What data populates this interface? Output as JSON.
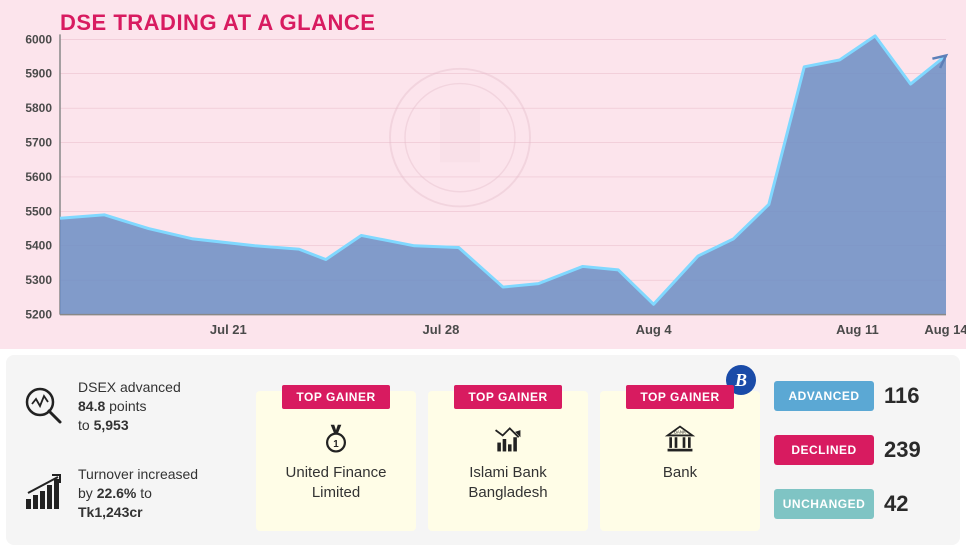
{
  "chart": {
    "title": "DSE TRADING AT A GLANCE",
    "type": "area",
    "title_color": "#d81b60",
    "title_fontsize": 22,
    "background_color": "#fce4ec",
    "area_fill": "#6b8ec4",
    "area_opacity": 0.85,
    "line_color": "#80d8ff",
    "line_width": 3,
    "grid_color": "#e8b9c8",
    "axis_color": "#888888",
    "tick_font_color": "#4a4a4a",
    "tick_fontsize": 12,
    "ylim": [
      5200,
      6000
    ],
    "ytick_step": 100,
    "yticks": [
      5200,
      5300,
      5400,
      5500,
      5600,
      5700,
      5800,
      5900,
      6000
    ],
    "xticks": [
      {
        "pos": 0.19,
        "label": "Jul 21"
      },
      {
        "pos": 0.43,
        "label": "Jul 28"
      },
      {
        "pos": 0.67,
        "label": "Aug 4"
      },
      {
        "pos": 0.9,
        "label": "Aug 11"
      },
      {
        "pos": 1.0,
        "label": "Aug 14"
      }
    ],
    "series": [
      {
        "x": 0.0,
        "y": 5480
      },
      {
        "x": 0.05,
        "y": 5490
      },
      {
        "x": 0.1,
        "y": 5450
      },
      {
        "x": 0.15,
        "y": 5420
      },
      {
        "x": 0.22,
        "y": 5400
      },
      {
        "x": 0.27,
        "y": 5390
      },
      {
        "x": 0.3,
        "y": 5360
      },
      {
        "x": 0.34,
        "y": 5430
      },
      {
        "x": 0.4,
        "y": 5400
      },
      {
        "x": 0.45,
        "y": 5395
      },
      {
        "x": 0.5,
        "y": 5280
      },
      {
        "x": 0.54,
        "y": 5290
      },
      {
        "x": 0.59,
        "y": 5340
      },
      {
        "x": 0.63,
        "y": 5330
      },
      {
        "x": 0.67,
        "y": 5230
      },
      {
        "x": 0.72,
        "y": 5370
      },
      {
        "x": 0.76,
        "y": 5420
      },
      {
        "x": 0.8,
        "y": 5520
      },
      {
        "x": 0.84,
        "y": 5920
      },
      {
        "x": 0.88,
        "y": 5940
      },
      {
        "x": 0.92,
        "y": 6010
      },
      {
        "x": 0.96,
        "y": 5870
      },
      {
        "x": 1.0,
        "y": 5953
      }
    ],
    "arrow_end": true
  },
  "stats": {
    "dsex": {
      "line1": "DSEX advanced",
      "points": "84.8",
      "line2_prefix": "points",
      "target_prefix": "to",
      "target": "5,953"
    },
    "turnover": {
      "line1": "Turnover increased",
      "pct": "22.6%",
      "line2_prefix": "by",
      "line2_suffix": "to",
      "value": "Tk1,243cr"
    }
  },
  "gainers": [
    {
      "badge": "TOP GAINER",
      "name_l1": "United Finance",
      "name_l2": "Limited",
      "icon": "medal"
    },
    {
      "badge": "TOP GAINER",
      "name_l1": "Islami Bank",
      "name_l2": "Bangladesh",
      "icon": "chart-down"
    },
    {
      "badge": "TOP GAINER",
      "name_l1": "Bank",
      "name_l2": "",
      "icon": "bank"
    }
  ],
  "counters": {
    "advanced": {
      "label": "ADVANCED",
      "value": "116",
      "color": "#5ba8d4"
    },
    "declined": {
      "label": "DECLINED",
      "value": "239",
      "color": "#d81b60"
    },
    "unchanged": {
      "label": "UNCHANGED",
      "value": "42",
      "color": "#7fc4c4"
    }
  },
  "logo": "B",
  "colors": {
    "accent": "#d81b60",
    "panel_bg": "#f5f5f5",
    "card_bg": "#fffde7"
  }
}
